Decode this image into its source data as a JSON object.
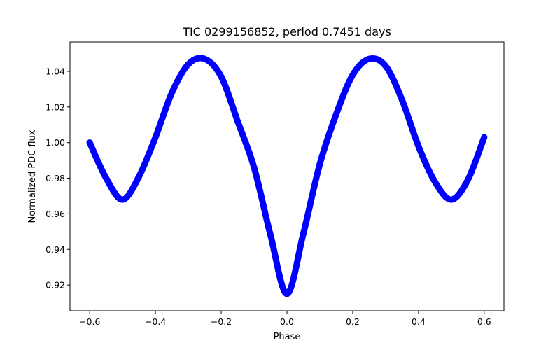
{
  "chart_data": {
    "type": "scatter",
    "title": "TIC 0299156852, period 0.7451 days",
    "xlabel": "Phase",
    "ylabel": "Normalized PDC flux",
    "xlim": [
      -0.66,
      0.66
    ],
    "ylim": [
      0.9055,
      1.0565
    ],
    "xticks": [
      -0.6,
      -0.4,
      -0.2,
      0.0,
      0.2,
      0.4,
      0.6
    ],
    "xtick_labels": [
      "−0.6",
      "−0.4",
      "−0.2",
      "0.0",
      "0.2",
      "0.4",
      "0.6"
    ],
    "yticks": [
      0.92,
      0.94,
      0.96,
      0.98,
      1.0,
      1.02,
      1.04
    ],
    "ytick_labels": [
      "0.92",
      "0.94",
      "0.96",
      "0.98",
      "1.00",
      "1.02",
      "1.04"
    ],
    "grid": false,
    "series": [
      {
        "name": "light curve",
        "color": "#0000ff",
        "x": [
          -0.6,
          -0.55,
          -0.5,
          -0.45,
          -0.4,
          -0.35,
          -0.3,
          -0.25,
          -0.2,
          -0.15,
          -0.1,
          -0.05,
          0.0,
          0.05,
          0.1,
          0.15,
          0.2,
          0.25,
          0.3,
          0.35,
          0.4,
          0.45,
          0.5,
          0.55,
          0.6
        ],
        "y": [
          1.0,
          0.98,
          0.968,
          0.981,
          1.003,
          1.028,
          1.044,
          1.047,
          1.037,
          1.012,
          0.986,
          0.948,
          0.915,
          0.949,
          0.988,
          1.016,
          1.038,
          1.047,
          1.043,
          1.024,
          0.998,
          0.978,
          0.968,
          0.979,
          1.003
        ]
      }
    ]
  }
}
